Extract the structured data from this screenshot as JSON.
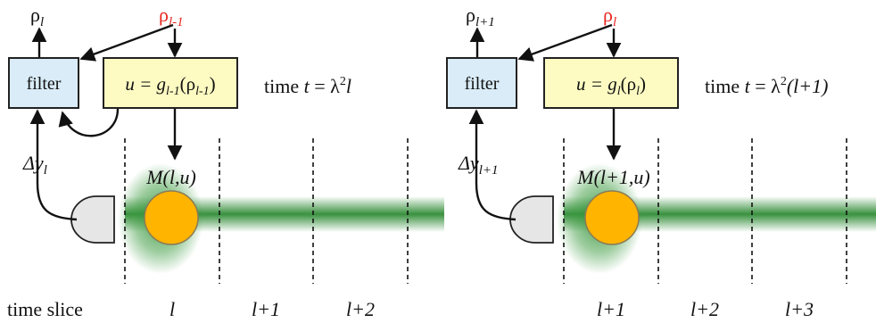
{
  "colors": {
    "filter_fill": "#d9ecf7",
    "controller_fill": "#fdfbc2",
    "atom": "#ffb400",
    "beam": "#2e8b34",
    "red_label": "#e8261f"
  },
  "panels": [
    {
      "rho_out": {
        "base": "ρ",
        "sub": "l"
      },
      "rho_in": {
        "base": "ρ",
        "sub": "l-1"
      },
      "filter_label": "filter",
      "controller": {
        "lhs": "u = g",
        "g_sub": "l-1",
        "arg": "(ρ",
        "arg_sub": "l-1",
        "close": ")"
      },
      "time": {
        "prefix": "time ",
        "t": "t",
        "eq": " = λ",
        "sup": "2",
        "rest": "l"
      },
      "delta_y": {
        "base": "Δy",
        "sub": "l"
      },
      "measurement": "M(l,u)",
      "slices": [
        "l",
        "l+1",
        "l+2"
      ]
    },
    {
      "rho_out": {
        "base": "ρ",
        "sub": "l+1"
      },
      "rho_in": {
        "base": "ρ",
        "sub": "l"
      },
      "filter_label": "filter",
      "controller": {
        "lhs": "u = g",
        "g_sub": "l",
        "arg": "(ρ",
        "arg_sub": "l",
        "close": ")"
      },
      "time": {
        "prefix": "time ",
        "t": "t",
        "eq": " = λ",
        "sup": "2",
        "rest": "(l+1)"
      },
      "delta_y": {
        "base": "Δy",
        "sub": "l+1"
      },
      "measurement": "M(l+1,u)",
      "slices": [
        "l+1",
        "l+2",
        "l+3"
      ]
    }
  ],
  "time_slice_label": "time slice"
}
